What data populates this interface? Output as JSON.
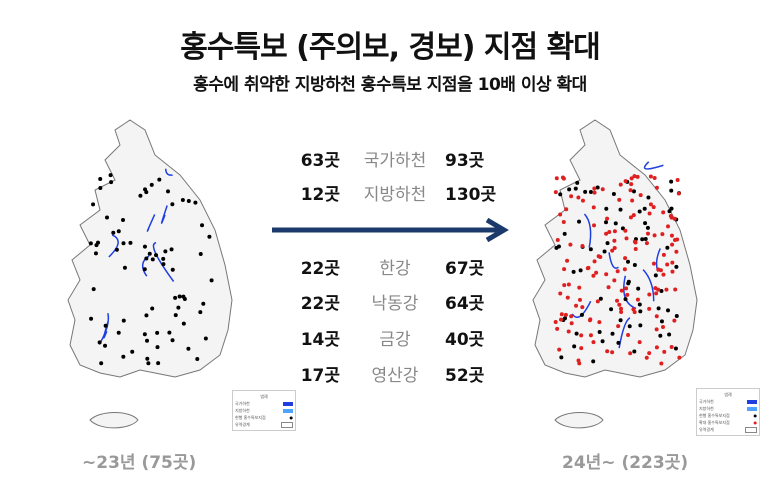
{
  "title": "홍수특보 (주의보, 경보) 지점 확대",
  "subtitle": "홍수에 취약한 지방하천 홍수특보 지점을 10배 이상 확대",
  "rows": [
    {
      "before": "63곳",
      "label": "국가하천",
      "after": "93곳"
    },
    {
      "before": "12곳",
      "label": "지방하천",
      "after": "130곳"
    },
    {
      "before": "22곳",
      "label": "한강",
      "after": "67곳"
    },
    {
      "before": "22곳",
      "label": "낙동강",
      "after": "64곳"
    },
    {
      "before": "14곳",
      "label": "금강",
      "after": "40곳"
    },
    {
      "before": "17곳",
      "label": "영산강",
      "after": "52곳"
    }
  ],
  "left_caption": "~23년 (75곳)",
  "right_caption": "24년~ (223곳)",
  "legend": {
    "title": "범례",
    "national": "국가하천",
    "local": "지방하천",
    "current": "현행 홍수특보지점",
    "expanded": "확대 홍수특보지점",
    "basin": "유역경계"
  },
  "colors": {
    "arrow": "#1b3a6b",
    "national": "#1f3fe0",
    "local": "#4da3ff",
    "current": "#000000",
    "expanded": "#e02020"
  }
}
